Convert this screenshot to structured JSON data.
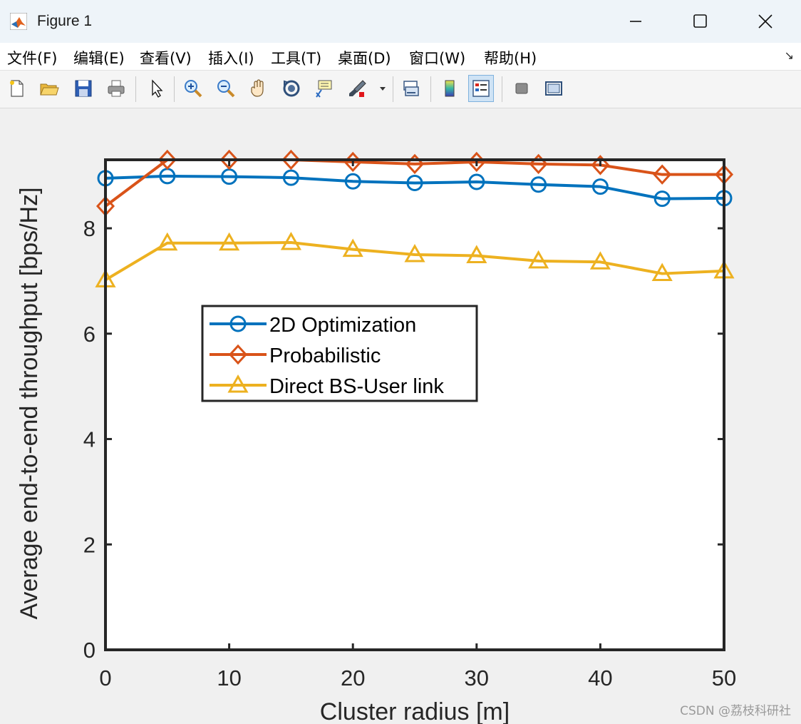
{
  "window": {
    "title": "Figure 1"
  },
  "menu": {
    "items": [
      "文件(F)",
      "编辑(E)",
      "查看(V)",
      "插入(I)",
      "工具(T)",
      "桌面(D)",
      "窗口(W)",
      "帮助(H)"
    ]
  },
  "toolbar": {
    "icons": [
      "new-figure-icon",
      "open-file-icon",
      "save-icon",
      "print-icon",
      "pointer-icon",
      "zoom-in-icon",
      "zoom-out-icon",
      "pan-hand-icon",
      "rotate-3d-icon",
      "data-cursor-icon",
      "brush-icon",
      "link-plot-icon",
      "colorbar-icon",
      "legend-icon",
      "hide-plot-tools-icon",
      "show-plot-tools-icon"
    ]
  },
  "colors": {
    "series1": "#0072bd",
    "series2": "#d95319",
    "series3": "#edb120"
  },
  "chart_data": {
    "type": "line",
    "title": "",
    "xlabel": "Cluster radius [m]",
    "ylabel": "Average end-to-end throughput [bps/Hz]",
    "xlim": [
      0,
      50
    ],
    "ylim": [
      0,
      9.3
    ],
    "xticks": [
      0,
      10,
      20,
      30,
      40,
      50
    ],
    "yticks": [
      0,
      2,
      4,
      6,
      8
    ],
    "grid": false,
    "legend_position": "center-left",
    "x": [
      0,
      5,
      10,
      15,
      20,
      25,
      30,
      35,
      40,
      45,
      50
    ],
    "series": [
      {
        "name": "2D Optimization",
        "marker": "circle",
        "values": [
          8.95,
          8.99,
          8.98,
          8.96,
          8.89,
          8.86,
          8.88,
          8.83,
          8.79,
          8.56,
          8.57
        ]
      },
      {
        "name": "Probabilistic",
        "marker": "diamond",
        "values": [
          8.42,
          9.3,
          9.3,
          9.3,
          9.26,
          9.22,
          9.26,
          9.22,
          9.2,
          9.02,
          9.02
        ]
      },
      {
        "name": "Direct BS-User link",
        "marker": "triangle",
        "values": [
          7.02,
          7.72,
          7.72,
          7.73,
          7.6,
          7.5,
          7.48,
          7.38,
          7.36,
          7.14,
          7.19
        ]
      }
    ]
  },
  "watermark": "CSDN @荔枝科研社"
}
